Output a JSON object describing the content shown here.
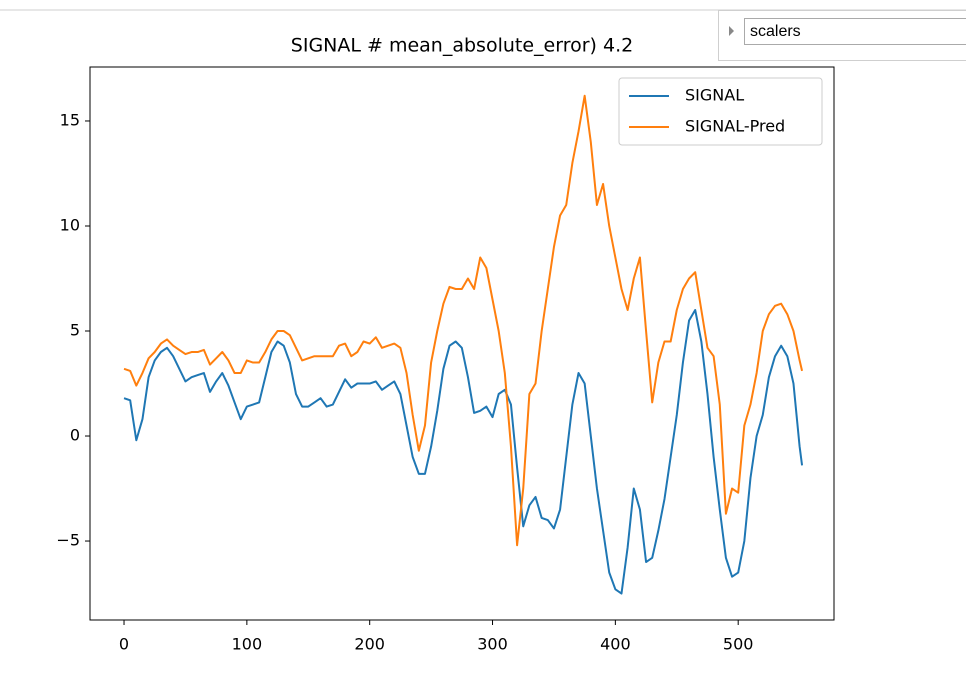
{
  "widget": {
    "label": "scalers"
  },
  "chart_data": {
    "type": "line",
    "title": "SIGNAL # mean_absolute_error) 4.2",
    "x": [
      0,
      5,
      10,
      15,
      20,
      25,
      30,
      35,
      40,
      45,
      50,
      55,
      60,
      65,
      70,
      75,
      80,
      85,
      90,
      95,
      100,
      105,
      110,
      115,
      120,
      125,
      130,
      135,
      140,
      145,
      150,
      155,
      160,
      165,
      170,
      175,
      180,
      185,
      190,
      195,
      200,
      205,
      210,
      215,
      220,
      225,
      230,
      235,
      240,
      245,
      250,
      255,
      260,
      265,
      270,
      275,
      280,
      285,
      290,
      295,
      300,
      305,
      310,
      315,
      320,
      325,
      330,
      335,
      340,
      345,
      350,
      355,
      360,
      365,
      370,
      375,
      380,
      385,
      390,
      395,
      400,
      405,
      410,
      415,
      420,
      425,
      430,
      435,
      440,
      445,
      450,
      455,
      460,
      465,
      470,
      475,
      480,
      485,
      490,
      495,
      500,
      505,
      510,
      515,
      520,
      525,
      530,
      535,
      540,
      545,
      550,
      552
    ],
    "series": [
      {
        "name": "SIGNAL",
        "color": "#1f77b4",
        "values": [
          1.8,
          1.7,
          -0.2,
          0.8,
          2.8,
          3.6,
          4.0,
          4.2,
          3.8,
          3.2,
          2.6,
          2.8,
          2.9,
          3.0,
          2.1,
          2.6,
          3.0,
          2.4,
          1.6,
          0.8,
          1.4,
          1.5,
          1.6,
          2.8,
          4.0,
          4.5,
          4.3,
          3.5,
          2.0,
          1.4,
          1.4,
          1.6,
          1.8,
          1.4,
          1.5,
          2.1,
          2.7,
          2.3,
          2.5,
          2.5,
          2.5,
          2.6,
          2.2,
          2.4,
          2.6,
          2.0,
          0.5,
          -1.0,
          -1.8,
          -1.8,
          -0.5,
          1.2,
          3.2,
          4.3,
          4.5,
          4.2,
          2.8,
          1.1,
          1.2,
          1.4,
          0.9,
          2.0,
          2.2,
          1.5,
          -1.5,
          -4.3,
          -3.3,
          -2.9,
          -3.9,
          -4.0,
          -4.4,
          -3.5,
          -1.0,
          1.5,
          3.0,
          2.5,
          0.0,
          -2.5,
          -4.5,
          -6.5,
          -7.3,
          -7.5,
          -5.3,
          -2.5,
          -3.5,
          -6.0,
          -5.8,
          -4.5,
          -3.0,
          -1.0,
          1.0,
          3.5,
          5.5,
          6.0,
          4.5,
          2.0,
          -1.0,
          -3.5,
          -5.8,
          -6.7,
          -6.5,
          -5.0,
          -2.0,
          0.0,
          1.0,
          2.8,
          3.8,
          4.3,
          3.8,
          2.5,
          -0.5,
          -1.4
        ]
      },
      {
        "name": "SIGNAL-Pred",
        "color": "#ff7f0e",
        "values": [
          3.2,
          3.1,
          2.4,
          3.0,
          3.7,
          4.0,
          4.4,
          4.6,
          4.3,
          4.1,
          3.9,
          4.0,
          4.0,
          4.1,
          3.4,
          3.7,
          4.0,
          3.6,
          3.0,
          3.0,
          3.6,
          3.5,
          3.5,
          4.0,
          4.6,
          5.0,
          5.0,
          4.8,
          4.2,
          3.6,
          3.7,
          3.8,
          3.8,
          3.8,
          3.8,
          4.3,
          4.4,
          3.8,
          4.0,
          4.5,
          4.4,
          4.7,
          4.2,
          4.3,
          4.4,
          4.2,
          3.0,
          1.0,
          -0.7,
          0.5,
          3.5,
          5.0,
          6.3,
          7.1,
          7.0,
          7.0,
          7.5,
          7.0,
          8.5,
          8.0,
          6.5,
          5.0,
          3.0,
          -0.5,
          -5.2,
          -2.5,
          2.0,
          2.5,
          5.0,
          7.0,
          9.0,
          10.5,
          11.0,
          13.0,
          14.5,
          16.2,
          14.0,
          11.0,
          12.0,
          10.0,
          8.5,
          7.0,
          6.0,
          7.5,
          8.5,
          5.0,
          1.6,
          3.5,
          4.5,
          4.5,
          6.0,
          7.0,
          7.5,
          7.8,
          6.0,
          4.2,
          3.8,
          1.5,
          -3.7,
          -2.5,
          -2.7,
          0.5,
          1.5,
          3.0,
          5.0,
          5.8,
          6.2,
          6.3,
          5.8,
          5.0,
          3.6,
          3.1
        ]
      }
    ],
    "xlim": [
      -27.7,
      578
    ],
    "ylim": [
      -8.76,
      17.57
    ],
    "xticks": [
      0,
      100,
      200,
      300,
      400,
      500
    ],
    "yticks": [
      {
        "value": -5,
        "label": "−5"
      },
      0,
      5,
      10,
      15
    ],
    "legend": "upper right",
    "grid": false
  }
}
